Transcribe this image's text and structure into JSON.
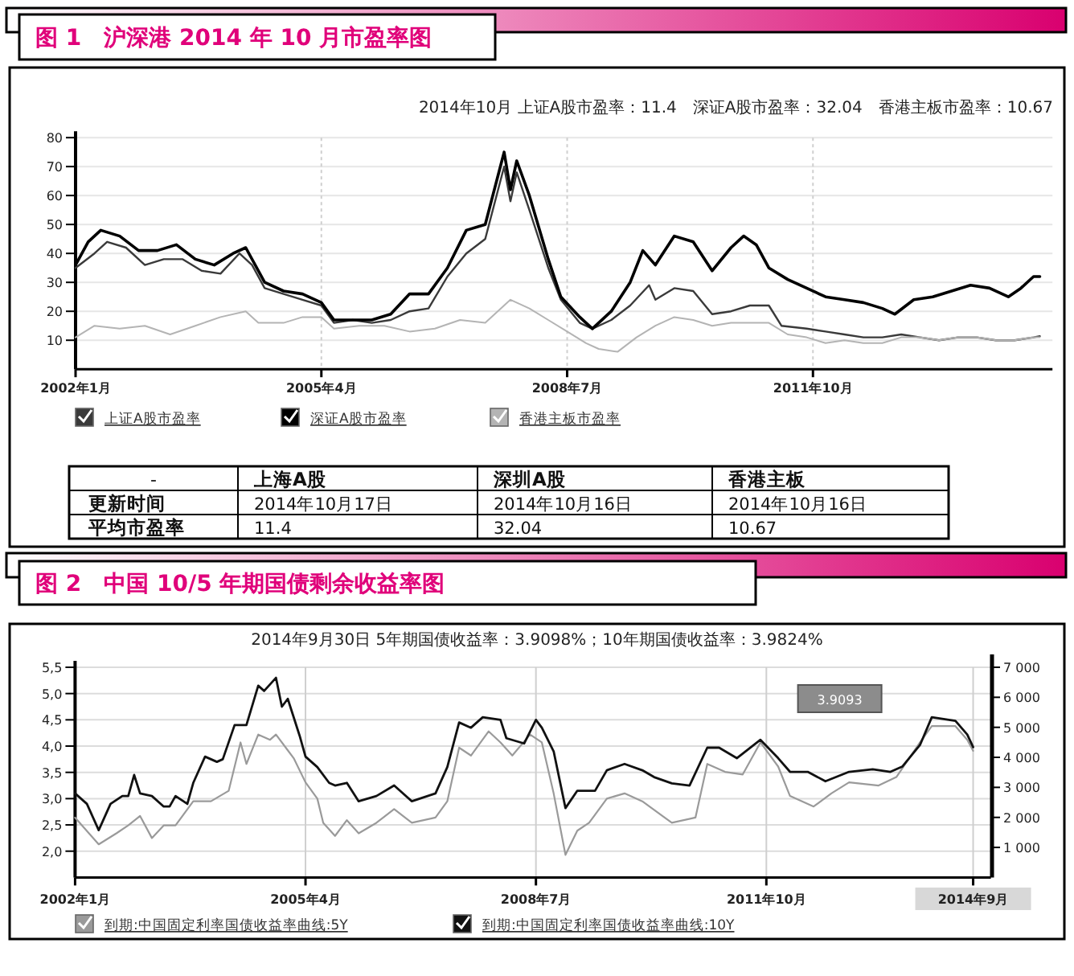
{
  "chart_data": [
    {
      "type": "line",
      "title": "图 1　沪深港 2014 年 10 月市盈率图",
      "subtitle": "2014年10月 上证A股市盈率：11.4　深证A股市盈率：32.04　香港主板市盈率：10.67",
      "xlim": [
        "2002-01",
        "2014-12"
      ],
      "ylim": [
        0,
        80
      ],
      "xticks": [
        {
          "value": "2002-01",
          "label": "2002年1月"
        },
        {
          "value": "2005-04",
          "label": "2005年4月"
        },
        {
          "value": "2008-07",
          "label": "2008年7月"
        },
        {
          "value": "2011-10",
          "label": "2011年10月"
        }
      ],
      "yticks": [
        10,
        20,
        30,
        40,
        50,
        60,
        70,
        80
      ],
      "grid": true,
      "legend": "bottom",
      "series": [
        {
          "name": "上证A股市盈率",
          "color": "#3a3a3a",
          "x": [
            "2002-01",
            "2002-04",
            "2002-06",
            "2002-09",
            "2002-12",
            "2003-03",
            "2003-06",
            "2003-09",
            "2003-12",
            "2004-03",
            "2004-05",
            "2004-07",
            "2004-10",
            "2005-01",
            "2005-04",
            "2005-06",
            "2005-09",
            "2005-12",
            "2006-03",
            "2006-06",
            "2006-09",
            "2006-12",
            "2007-03",
            "2007-06",
            "2007-09",
            "2007-10",
            "2007-11",
            "2008-01",
            "2008-04",
            "2008-06",
            "2008-09",
            "2008-11",
            "2009-02",
            "2009-05",
            "2009-08",
            "2009-09",
            "2009-12",
            "2010-03",
            "2010-06",
            "2010-09",
            "2010-12",
            "2011-03",
            "2011-05",
            "2011-09",
            "2011-12",
            "2012-03",
            "2012-06",
            "2012-09",
            "2012-12",
            "2013-03",
            "2013-06",
            "2013-09",
            "2013-12",
            "2014-03",
            "2014-06",
            "2014-09",
            "2014-10"
          ],
          "values": [
            35,
            40,
            44,
            42,
            36,
            38,
            38,
            34,
            33,
            40,
            36,
            28,
            26,
            24,
            22,
            16,
            17,
            16,
            17,
            20,
            21,
            32,
            40,
            45,
            70,
            58,
            68,
            55,
            35,
            24,
            16,
            14,
            17,
            22,
            29,
            24,
            28,
            27,
            19,
            20,
            22,
            22,
            15,
            14,
            13,
            12,
            11,
            11,
            12,
            11,
            10,
            11,
            11,
            10,
            10,
            11,
            11.4
          ]
        },
        {
          "name": "深证A股市盈率",
          "color": "#000000",
          "x": [
            "2002-01",
            "2002-03",
            "2002-05",
            "2002-08",
            "2002-11",
            "2003-02",
            "2003-05",
            "2003-08",
            "2003-11",
            "2004-02",
            "2004-04",
            "2004-07",
            "2004-10",
            "2005-01",
            "2005-04",
            "2005-06",
            "2005-09",
            "2005-12",
            "2006-03",
            "2006-06",
            "2006-09",
            "2006-12",
            "2007-03",
            "2007-06",
            "2007-09",
            "2007-10",
            "2007-11",
            "2008-01",
            "2008-04",
            "2008-06",
            "2008-09",
            "2008-11",
            "2009-02",
            "2009-05",
            "2009-07",
            "2009-09",
            "2009-12",
            "2010-03",
            "2010-06",
            "2010-09",
            "2010-11",
            "2011-01",
            "2011-03",
            "2011-06",
            "2011-09",
            "2011-12",
            "2012-03",
            "2012-06",
            "2012-09",
            "2012-11",
            "2013-02",
            "2013-05",
            "2013-08",
            "2013-11",
            "2014-02",
            "2014-05",
            "2014-07",
            "2014-09",
            "2014-10"
          ],
          "values": [
            36,
            44,
            48,
            46,
            41,
            41,
            43,
            38,
            36,
            40,
            42,
            30,
            27,
            26,
            23,
            17,
            17,
            17,
            19,
            26,
            26,
            35,
            48,
            50,
            75,
            62,
            72,
            60,
            38,
            25,
            18,
            14,
            20,
            30,
            41,
            36,
            46,
            44,
            34,
            42,
            46,
            43,
            35,
            31,
            28,
            25,
            24,
            23,
            21,
            19,
            24,
            25,
            27,
            29,
            28,
            25,
            28,
            32,
            32
          ]
        },
        {
          "name": "香港主板市盈率",
          "color": "#b4b4b4",
          "x": [
            "2002-01",
            "2002-04",
            "2002-08",
            "2002-12",
            "2003-04",
            "2003-08",
            "2003-12",
            "2004-04",
            "2004-06",
            "2004-10",
            "2005-01",
            "2005-04",
            "2005-06",
            "2005-10",
            "2006-02",
            "2006-06",
            "2006-10",
            "2007-02",
            "2007-06",
            "2007-10",
            "2008-01",
            "2008-04",
            "2008-07",
            "2008-10",
            "2008-12",
            "2009-03",
            "2009-06",
            "2009-09",
            "2009-12",
            "2010-03",
            "2010-06",
            "2010-09",
            "2010-12",
            "2011-03",
            "2011-06",
            "2011-09",
            "2011-12",
            "2012-03",
            "2012-06",
            "2012-09",
            "2012-12",
            "2013-03",
            "2013-06",
            "2013-09",
            "2013-12",
            "2014-03",
            "2014-06",
            "2014-09",
            "2014-10"
          ],
          "values": [
            11,
            15,
            14,
            15,
            12,
            15,
            18,
            20,
            16,
            16,
            18,
            18,
            14,
            15,
            15,
            13,
            14,
            17,
            16,
            24,
            21,
            17,
            13,
            9,
            7,
            6,
            11,
            15,
            18,
            17,
            15,
            16,
            16,
            16,
            12,
            11,
            9,
            10,
            9,
            9,
            11,
            11,
            10,
            11,
            11,
            10,
            10,
            11,
            11
          ]
        }
      ]
    },
    {
      "type": "other",
      "annotations": [
        "-",
        "上海A股",
        "深圳A股",
        "香港主板",
        "更新时间",
        "2014年10月17日",
        "2014年10月16日",
        "2014年10月16日",
        "平均市盈率",
        "11.4",
        "32.04",
        "10.67"
      ]
    },
    {
      "type": "line",
      "title": "图 2　中国 10/5 年期国债剩余收益率图",
      "subtitle": "2014年9月30日 5年期国债收益率：3.9098%；10年期国债收益率：3.9824%",
      "xlim": [
        "2002-01",
        "2014-12"
      ],
      "ylim": [
        1.5,
        5.5
      ],
      "y2lim": [
        0,
        7000
      ],
      "xticks": [
        {
          "value": "2002-01",
          "label": "2002年1月"
        },
        {
          "value": "2005-04",
          "label": "2005年4月"
        },
        {
          "value": "2008-07",
          "label": "2008年7月"
        },
        {
          "value": "2011-10",
          "label": "2011年10月"
        },
        {
          "value": "2014-09",
          "label": "2014年9月"
        }
      ],
      "yticks": [
        {
          "value": 2,
          "label": "2,0"
        },
        {
          "value": 2.5,
          "label": "2,5"
        },
        {
          "value": 3,
          "label": "3,0"
        },
        {
          "value": 3.5,
          "label": "3,5"
        },
        {
          "value": 4,
          "label": "4,0"
        },
        {
          "value": 4.5,
          "label": "4,5"
        },
        {
          "value": 5,
          "label": "5,0"
        },
        {
          "value": 5.5,
          "label": "5,5"
        }
      ],
      "y2ticks": [
        {
          "value": 1000,
          "label": "1 000"
        },
        {
          "value": 2000,
          "label": "2 000"
        },
        {
          "value": 3000,
          "label": "3 000"
        },
        {
          "value": 4000,
          "label": "4 000"
        },
        {
          "value": 5000,
          "label": "5 000"
        },
        {
          "value": 6000,
          "label": "6 000"
        },
        {
          "value": 7000,
          "label": "7 000"
        }
      ],
      "grid": true,
      "legend": "bottom",
      "annotations": [
        "3.9093"
      ],
      "series": [
        {
          "name": "到期:中国固定利率国债收益率曲线:5Y",
          "color": "#9a9a9a",
          "x": [
            "2002-01",
            "2002-05",
            "2002-08",
            "2002-10",
            "2002-12",
            "2003-02",
            "2003-04",
            "2003-06",
            "2003-09",
            "2003-12",
            "2004-03",
            "2004-05",
            "2004-06",
            "2004-08",
            "2004-10",
            "2004-11",
            "2005-01",
            "2005-02",
            "2005-04",
            "2005-06",
            "2005-07",
            "2005-09",
            "2005-11",
            "2006-01",
            "2006-04",
            "2006-07",
            "2006-10",
            "2007-02",
            "2007-04",
            "2007-06",
            "2007-08",
            "2007-11",
            "2008-01",
            "2008-03",
            "2008-06",
            "2008-08",
            "2008-10",
            "2008-12",
            "2009-02",
            "2009-04",
            "2009-07",
            "2009-10",
            "2010-01",
            "2010-06",
            "2010-10",
            "2010-12",
            "2011-03",
            "2011-06",
            "2011-09",
            "2011-12",
            "2012-02",
            "2012-06",
            "2012-09",
            "2012-12",
            "2013-05",
            "2013-08",
            "2013-12",
            "2014-02",
            "2014-06",
            "2014-08",
            "2014-09"
          ],
          "values": [
            2.64,
            2.13,
            2.34,
            2.49,
            2.67,
            2.25,
            2.49,
            2.49,
            2.95,
            2.95,
            3.15,
            4.07,
            3.66,
            4.22,
            4.12,
            4.22,
            3.92,
            3.77,
            3.31,
            3.0,
            2.54,
            2.29,
            2.59,
            2.34,
            2.54,
            2.8,
            2.54,
            2.64,
            2.95,
            3.97,
            3.82,
            4.28,
            4.07,
            3.82,
            4.22,
            4.07,
            3.1,
            1.93,
            2.39,
            2.54,
            3.0,
            3.1,
            2.95,
            2.54,
            2.64,
            3.66,
            3.51,
            3.46,
            4.07,
            3.61,
            3.05,
            2.85,
            3.1,
            3.31,
            3.25,
            3.41,
            4.07,
            4.38,
            4.38,
            4.12,
            3.91
          ]
        },
        {
          "name": "到期:中国固定利率国债收益率曲线:10Y",
          "color": "#111111",
          "x": [
            "2002-01",
            "2002-03",
            "2002-05",
            "2002-07",
            "2002-09",
            "2002-10",
            "2002-11",
            "2002-12",
            "2003-02",
            "2003-04",
            "2003-05",
            "2003-06",
            "2003-08",
            "2003-09",
            "2003-11",
            "2004-01",
            "2004-02",
            "2004-04",
            "2004-06",
            "2004-08",
            "2004-09",
            "2004-11",
            "2004-12",
            "2005-01",
            "2005-03",
            "2005-04",
            "2005-06",
            "2005-08",
            "2005-09",
            "2005-11",
            "2006-01",
            "2006-04",
            "2006-07",
            "2006-10",
            "2007-02",
            "2007-04",
            "2007-06",
            "2007-08",
            "2007-10",
            "2008-01",
            "2008-02",
            "2008-05",
            "2008-07",
            "2008-08",
            "2008-10",
            "2008-12",
            "2009-02",
            "2009-05",
            "2009-07",
            "2009-10",
            "2010-01",
            "2010-03",
            "2010-06",
            "2010-09",
            "2010-12",
            "2011-02",
            "2011-05",
            "2011-09",
            "2011-12",
            "2012-02",
            "2012-05",
            "2012-08",
            "2012-12",
            "2013-04",
            "2013-07",
            "2013-09",
            "2013-12",
            "2014-02",
            "2014-06",
            "2014-08",
            "2014-09"
          ],
          "values": [
            3.1,
            2.9,
            2.4,
            2.9,
            3.05,
            3.05,
            3.45,
            3.1,
            3.05,
            2.85,
            2.85,
            3.05,
            2.9,
            3.3,
            3.8,
            3.7,
            3.75,
            4.4,
            4.4,
            5.15,
            5.05,
            5.3,
            4.75,
            4.9,
            4.2,
            3.8,
            3.6,
            3.3,
            3.25,
            3.3,
            2.95,
            3.05,
            3.25,
            2.95,
            3.1,
            3.6,
            4.45,
            4.35,
            4.55,
            4.5,
            4.15,
            4.05,
            4.5,
            4.35,
            3.9,
            2.82,
            3.15,
            3.15,
            3.54,
            3.66,
            3.54,
            3.41,
            3.29,
            3.25,
            3.97,
            3.97,
            3.77,
            4.12,
            3.77,
            3.51,
            3.51,
            3.33,
            3.51,
            3.56,
            3.51,
            3.61,
            4.02,
            4.55,
            4.48,
            4.22,
            3.98
          ]
        }
      ]
    }
  ]
}
